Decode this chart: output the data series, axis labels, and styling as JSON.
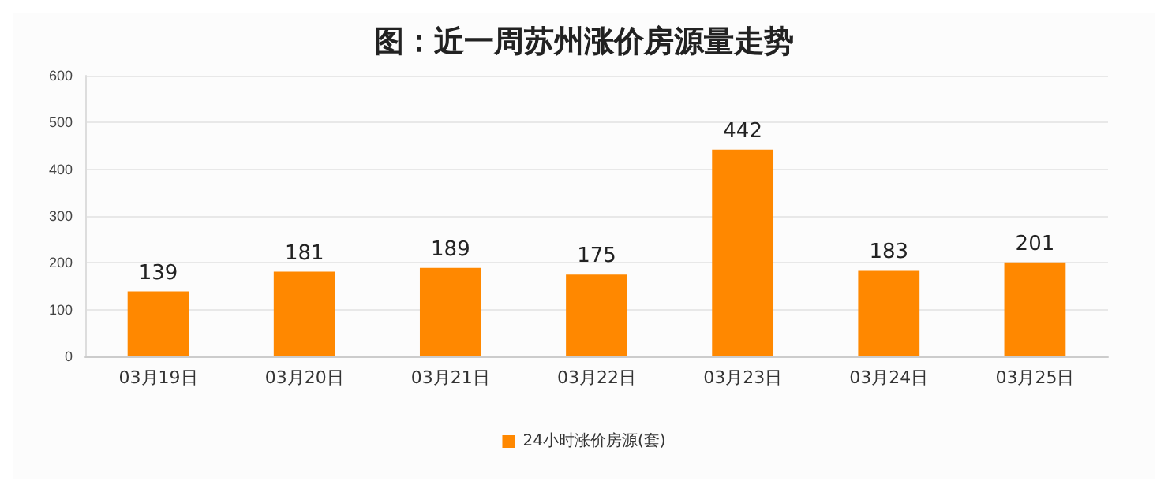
{
  "chart_data": {
    "type": "bar",
    "title": "图：近一周苏州涨价房源量走势",
    "categories": [
      "03月19日",
      "03月20日",
      "03月21日",
      "03月22日",
      "03月23日",
      "03月24日",
      "03月25日"
    ],
    "series": [
      {
        "name": "24小时涨价房源(套)",
        "color": "#ff8800",
        "values": [
          139,
          181,
          189,
          175,
          442,
          183,
          201
        ]
      }
    ],
    "ylim": [
      0,
      600
    ],
    "yticks": [
      0,
      100,
      200,
      300,
      400,
      500,
      600
    ],
    "grid": "y",
    "legend": "bottom",
    "data_labels": true
  }
}
